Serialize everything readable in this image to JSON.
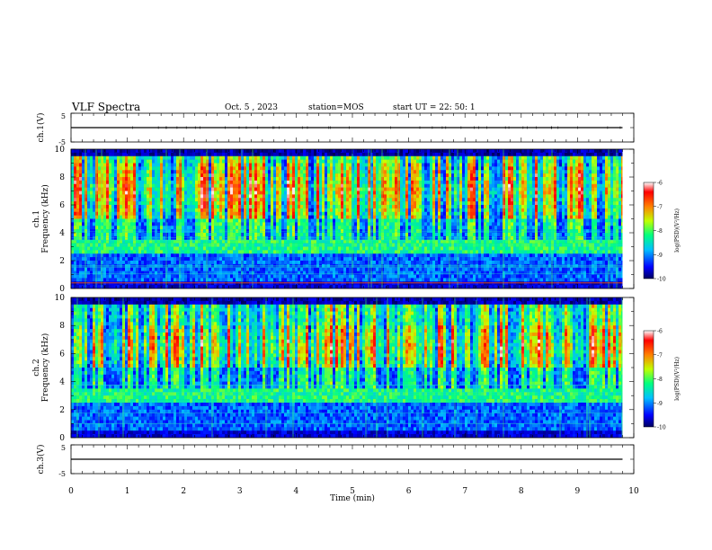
{
  "header": {
    "title": "VLF Spectra",
    "date": "Oct. 5 , 2023",
    "station": "station=MOS",
    "start": "start UT = 22: 50: 1"
  },
  "chart_data": [
    {
      "type": "line",
      "ylabel": "ch.1(V)",
      "ylim": [
        -5,
        5
      ],
      "yticks": [
        "5",
        "-5"
      ],
      "series": [
        {
          "x": [
            0,
            9.8
          ],
          "values": [
            0,
            0
          ]
        }
      ]
    },
    {
      "type": "heatmap",
      "ylabel": "ch.1\nFrequency (kHz)",
      "ylim": [
        0,
        10
      ],
      "yticks": [
        "0",
        "2",
        "4",
        "6",
        "8",
        "10"
      ],
      "xlim": [
        0,
        10
      ],
      "colorbar": {
        "label": "log(PSD)(V²/Hz)",
        "range": [
          -10,
          -6
        ],
        "ticks": [
          "-6",
          "-7",
          "-8",
          "-9",
          "-10"
        ]
      },
      "band_khz": {
        "intense": [
          5,
          9
        ],
        "emission": [
          2.5,
          3.5
        ]
      },
      "data_end_min": 9.8
    },
    {
      "type": "heatmap",
      "ylabel": "ch.2\nFrequency (kHz)",
      "ylim": [
        0,
        10
      ],
      "yticks": [
        "0",
        "2",
        "4",
        "6",
        "8",
        "10"
      ],
      "xlim": [
        0,
        10
      ],
      "colorbar": {
        "label": "log(PSD)(V²/Hz)",
        "range": [
          -10,
          -6
        ],
        "ticks": [
          "-6",
          "-7",
          "-8",
          "-9",
          "-10"
        ]
      },
      "band_khz": {
        "intense": [
          5,
          8
        ],
        "emission": [
          2.5,
          3.5
        ]
      },
      "data_end_min": 9.8
    },
    {
      "type": "line",
      "ylabel": "ch.3(V)",
      "ylim": [
        -5,
        5
      ],
      "yticks": [
        "5",
        "-5"
      ],
      "series": [
        {
          "x": [
            0,
            9.8
          ],
          "values": [
            0,
            0
          ]
        }
      ]
    }
  ],
  "xaxis": {
    "label": "Time (min)",
    "xlim": [
      0,
      10
    ],
    "ticks": [
      "0",
      "1",
      "2",
      "3",
      "4",
      "5",
      "6",
      "7",
      "8",
      "9",
      "10"
    ]
  },
  "colors": {
    "frame": "#000000",
    "background": "#ffffff"
  }
}
